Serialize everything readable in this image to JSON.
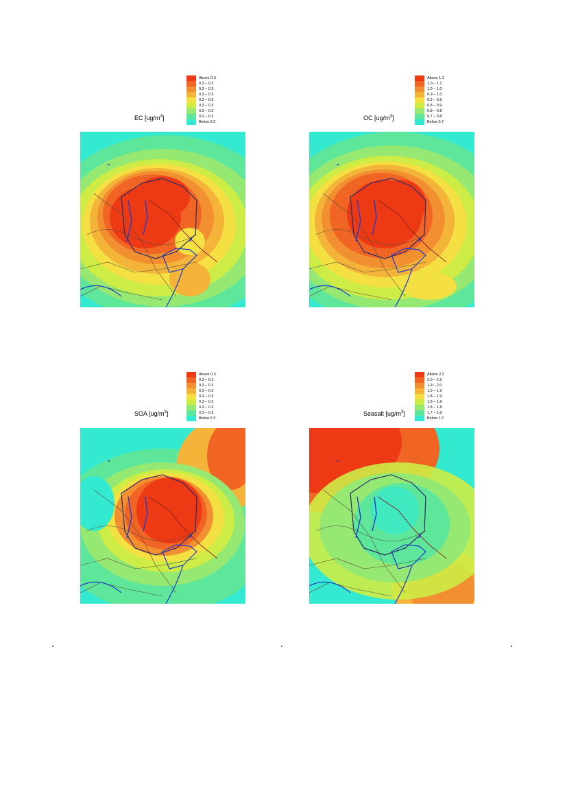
{
  "legend_colors": [
    "#ee3a14",
    "#f06424",
    "#f28f30",
    "#f4b43a",
    "#f5e043",
    "#cdec45",
    "#95e871",
    "#5ee79a",
    "#33ead0"
  ],
  "maps": [
    {
      "id": "ec",
      "title_prefix": "EC [ug/m",
      "title_sup": "3",
      "title_suffix": "]",
      "legend": [
        "Above  0.3",
        "0.3 – 0.3",
        "0.3 – 0.3",
        "0.3 – 0.3",
        "0.3 – 0.3",
        "0.3 – 0.3",
        "0.3 – 0.3",
        "0.2 – 0.3",
        "Below  0.2"
      ]
    },
    {
      "id": "oc",
      "title_prefix": "OC [ug/m",
      "title_sup": "3",
      "title_suffix": "]",
      "legend": [
        "Above  1.1",
        "1.0 – 1.1",
        "1.0 – 1.0",
        "0.9 – 1.0",
        "0.9 – 0.9",
        "0.8 – 0.9",
        "0.8 – 0.8",
        "0.7 – 0.8",
        "Below  0.7"
      ]
    },
    {
      "id": "soa",
      "title_prefix": "SOA [ug/m",
      "title_sup": "3",
      "title_suffix": "]",
      "legend": [
        "Above  0.3",
        "0.3 – 0.3",
        "0.3 – 0.3",
        "0.3 – 0.3",
        "0.3 – 0.3",
        "0.3 – 0.3",
        "0.3 – 0.3",
        "0.3 – 0.3",
        "Below  0.3"
      ]
    },
    {
      "id": "seasalt",
      "title_prefix": "Seasalt [ug/m",
      "title_sup": "3",
      "title_suffix": "]",
      "legend": [
        "Above  2.2",
        "2.0 – 2.2",
        "1.9 – 2.0",
        "1.9 – 1.9",
        "1.8 – 1.9",
        "1.8 – 1.8",
        "1.8 – 1.8",
        "1.7 – 1.8",
        "Below  1.7"
      ]
    }
  ]
}
